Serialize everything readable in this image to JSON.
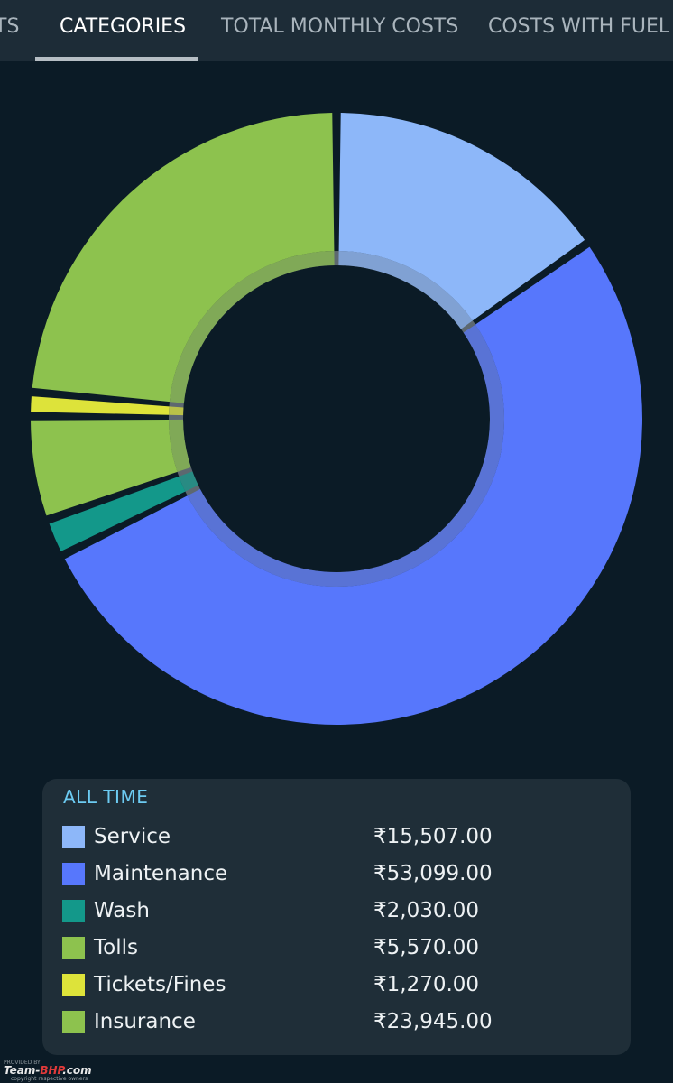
{
  "tabs": [
    {
      "label": "TS",
      "active": false
    },
    {
      "label": "CATEGORIES",
      "active": true
    },
    {
      "label": "TOTAL MONTHLY COSTS",
      "active": false
    },
    {
      "label": "COSTS WITH FUEL",
      "active": false
    }
  ],
  "legend": {
    "title": "ALL TIME",
    "items": [
      {
        "label": "Service",
        "value": "₹15,507.00",
        "color": "#8db7f9"
      },
      {
        "label": "Maintenance",
        "value": "₹53,099.00",
        "color": "#5777fc"
      },
      {
        "label": "Wash",
        "value": "₹2,030.00",
        "color": "#13988a"
      },
      {
        "label": "Tolls",
        "value": "₹5,570.00",
        "color": "#8dc24e"
      },
      {
        "label": "Tickets/Fines",
        "value": "₹1,270.00",
        "color": "#dde33a"
      },
      {
        "label": "Insurance",
        "value": "₹23,945.00",
        "color": "#8dc24e"
      }
    ]
  },
  "chart_data": {
    "type": "pie",
    "categories": [
      "Service",
      "Maintenance",
      "Wash",
      "Tolls",
      "Tickets/Fines",
      "Insurance"
    ],
    "values": [
      15507,
      53099,
      2030,
      5570,
      1270,
      23945
    ],
    "colors": [
      "#8db7f9",
      "#5777fc",
      "#13988a",
      "#8dc24e",
      "#dde33a",
      "#8dc24e"
    ],
    "donut": true
  },
  "watermark": {
    "brand_prefix": "Team-",
    "brand_highlight": "BHP",
    "brand_suffix": ".com",
    "tagline": "copyright respective owners",
    "small_text": "PROVIDED BY"
  }
}
